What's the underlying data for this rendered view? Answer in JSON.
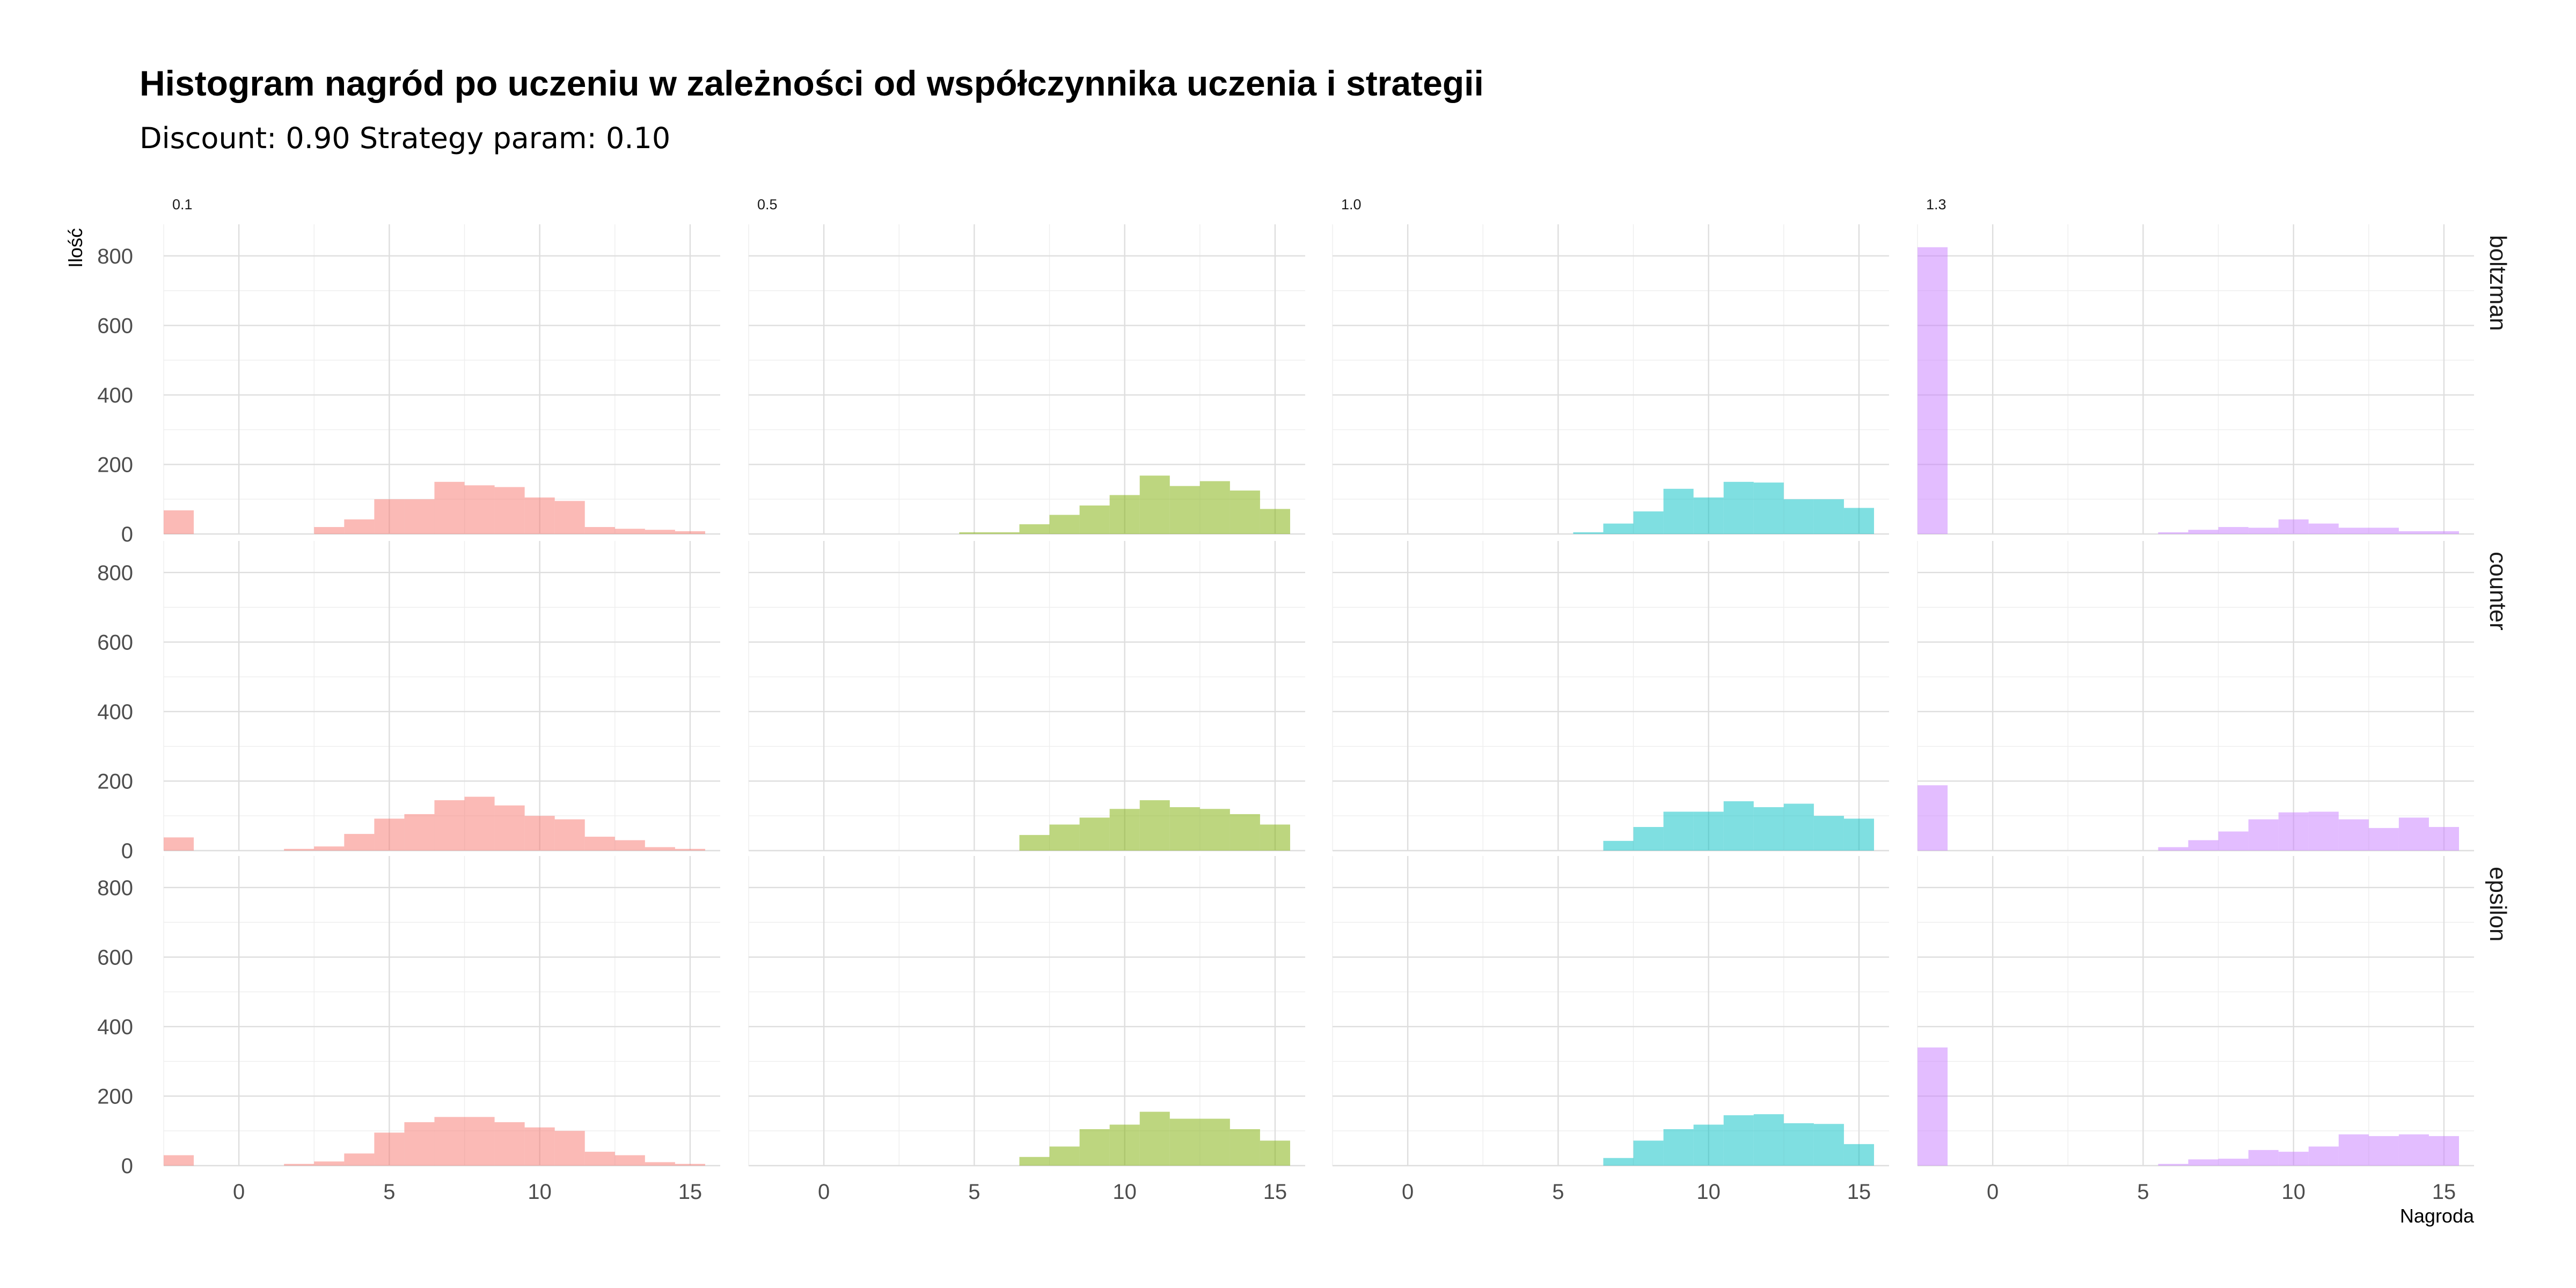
{
  "chart_data": {
    "type": "bar",
    "chart_kind": "faceted histogram",
    "title": "Histogram nagród po uczeniu w zależności od współczynnika uczenia i strategii",
    "subtitle": "Discount: 0.90 Strategy param: 0.10",
    "xlabel": "Nagroda",
    "ylabel": "Ilość",
    "xlim": [
      -2.5,
      16
    ],
    "ylim": [
      0,
      860
    ],
    "x_ticks": [
      0,
      5,
      10,
      15
    ],
    "y_ticks": [
      0,
      200,
      400,
      600,
      800
    ],
    "grid": true,
    "legend": "none",
    "bin_width": 1,
    "first_bin_start": -2.5,
    "bin_count": 18,
    "column_labels": [
      "0.1",
      "0.5",
      "1.0",
      "1.3"
    ],
    "row_labels": [
      "boltzman",
      "counter",
      "epsilon"
    ],
    "column_colors": [
      "#F8766D",
      "#7CAE00",
      "#00BFC4",
      "#C77CFF"
    ],
    "facets": [
      [
        {
          "column": "0.1",
          "row": "boltzman",
          "counts": [
            68,
            0,
            0,
            0,
            0,
            20,
            42,
            100,
            100,
            150,
            140,
            135,
            105,
            95,
            20,
            15,
            12,
            8
          ]
        },
        {
          "column": "0.5",
          "row": "boltzman",
          "counts": [
            0,
            0,
            0,
            0,
            0,
            0,
            0,
            5,
            5,
            28,
            55,
            82,
            112,
            168,
            138,
            152,
            125,
            72
          ]
        },
        {
          "column": "1.0",
          "row": "boltzman",
          "counts": [
            0,
            0,
            0,
            0,
            0,
            0,
            0,
            0,
            5,
            30,
            65,
            130,
            105,
            150,
            148,
            100,
            100,
            75
          ]
        },
        {
          "column": "1.3",
          "row": "boltzman",
          "counts": [
            825,
            0,
            0,
            0,
            0,
            0,
            0,
            0,
            5,
            12,
            20,
            18,
            42,
            30,
            18,
            18,
            8,
            8
          ]
        }
      ],
      [
        {
          "column": "0.1",
          "row": "counter",
          "counts": [
            38,
            0,
            0,
            0,
            5,
            12,
            48,
            92,
            105,
            145,
            155,
            130,
            100,
            90,
            40,
            30,
            10,
            5
          ]
        },
        {
          "column": "0.5",
          "row": "counter",
          "counts": [
            0,
            0,
            0,
            0,
            0,
            0,
            0,
            0,
            0,
            45,
            75,
            95,
            120,
            145,
            125,
            120,
            105,
            75
          ]
        },
        {
          "column": "1.0",
          "row": "counter",
          "counts": [
            0,
            0,
            0,
            0,
            0,
            0,
            0,
            0,
            0,
            28,
            68,
            112,
            112,
            142,
            125,
            135,
            100,
            92
          ]
        },
        {
          "column": "1.3",
          "row": "counter",
          "counts": [
            188,
            0,
            0,
            0,
            0,
            0,
            0,
            0,
            10,
            30,
            55,
            90,
            110,
            112,
            90,
            65,
            95,
            68
          ]
        }
      ],
      [
        {
          "column": "0.1",
          "row": "epsilon",
          "counts": [
            30,
            0,
            0,
            0,
            5,
            12,
            35,
            95,
            125,
            140,
            140,
            125,
            110,
            100,
            40,
            30,
            10,
            5
          ]
        },
        {
          "column": "0.5",
          "row": "epsilon",
          "counts": [
            0,
            0,
            0,
            0,
            0,
            0,
            0,
            0,
            0,
            25,
            55,
            105,
            118,
            155,
            135,
            135,
            105,
            72
          ]
        },
        {
          "column": "1.0",
          "row": "epsilon",
          "counts": [
            0,
            0,
            0,
            0,
            0,
            0,
            0,
            0,
            0,
            22,
            72,
            105,
            118,
            145,
            148,
            122,
            120,
            62
          ]
        },
        {
          "column": "1.3",
          "row": "epsilon",
          "counts": [
            340,
            0,
            0,
            0,
            0,
            0,
            0,
            0,
            5,
            18,
            20,
            45,
            40,
            55,
            90,
            85,
            90,
            85
          ]
        }
      ]
    ]
  }
}
